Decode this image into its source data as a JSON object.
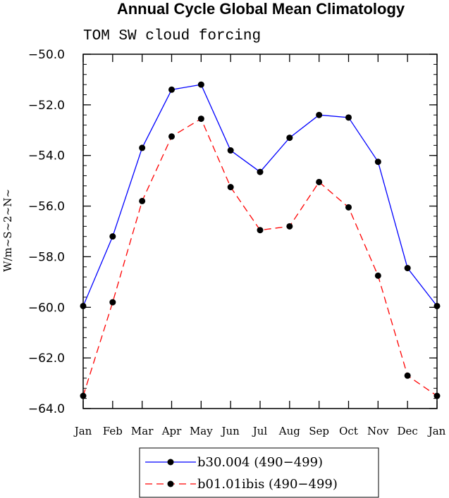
{
  "chart_data": {
    "type": "line",
    "title": "Annual Cycle Global Mean Climatology",
    "subtitle": "TOM SW cloud forcing",
    "ylabel": "W/m~S~2~N~",
    "xlabel": "",
    "categories": [
      "Jan",
      "Feb",
      "Mar",
      "Apr",
      "May",
      "Jun",
      "Jul",
      "Aug",
      "Sep",
      "Oct",
      "Nov",
      "Dec",
      "Jan"
    ],
    "ylim": [
      -64.0,
      -50.0
    ],
    "yticks": [
      -50.0,
      -52.0,
      -54.0,
      -56.0,
      -58.0,
      -60.0,
      -62.0,
      -64.0
    ],
    "yticklabels": [
      "−50.0",
      "−52.0",
      "−54.0",
      "−56.0",
      "−58.0",
      "−60.0",
      "−62.0",
      "−64.0"
    ],
    "grid": false,
    "legend_position": "bottom-center",
    "series": [
      {
        "name": "b30.004 (490−499)",
        "color": "#0000ff",
        "dash": "solid",
        "marker": "circle",
        "values": [
          -59.95,
          -57.2,
          -53.7,
          -51.4,
          -51.2,
          -53.8,
          -54.65,
          -53.3,
          -52.4,
          -52.5,
          -54.25,
          -58.45,
          -59.95
        ]
      },
      {
        "name": "b01.01ibis (490−499)",
        "color": "#ff0000",
        "dash": "dashed",
        "marker": "circle",
        "values": [
          -63.5,
          -59.8,
          -55.8,
          -53.25,
          -52.55,
          -55.25,
          -56.95,
          -56.8,
          -55.05,
          -56.05,
          -58.75,
          -62.7,
          -63.5
        ]
      }
    ]
  }
}
